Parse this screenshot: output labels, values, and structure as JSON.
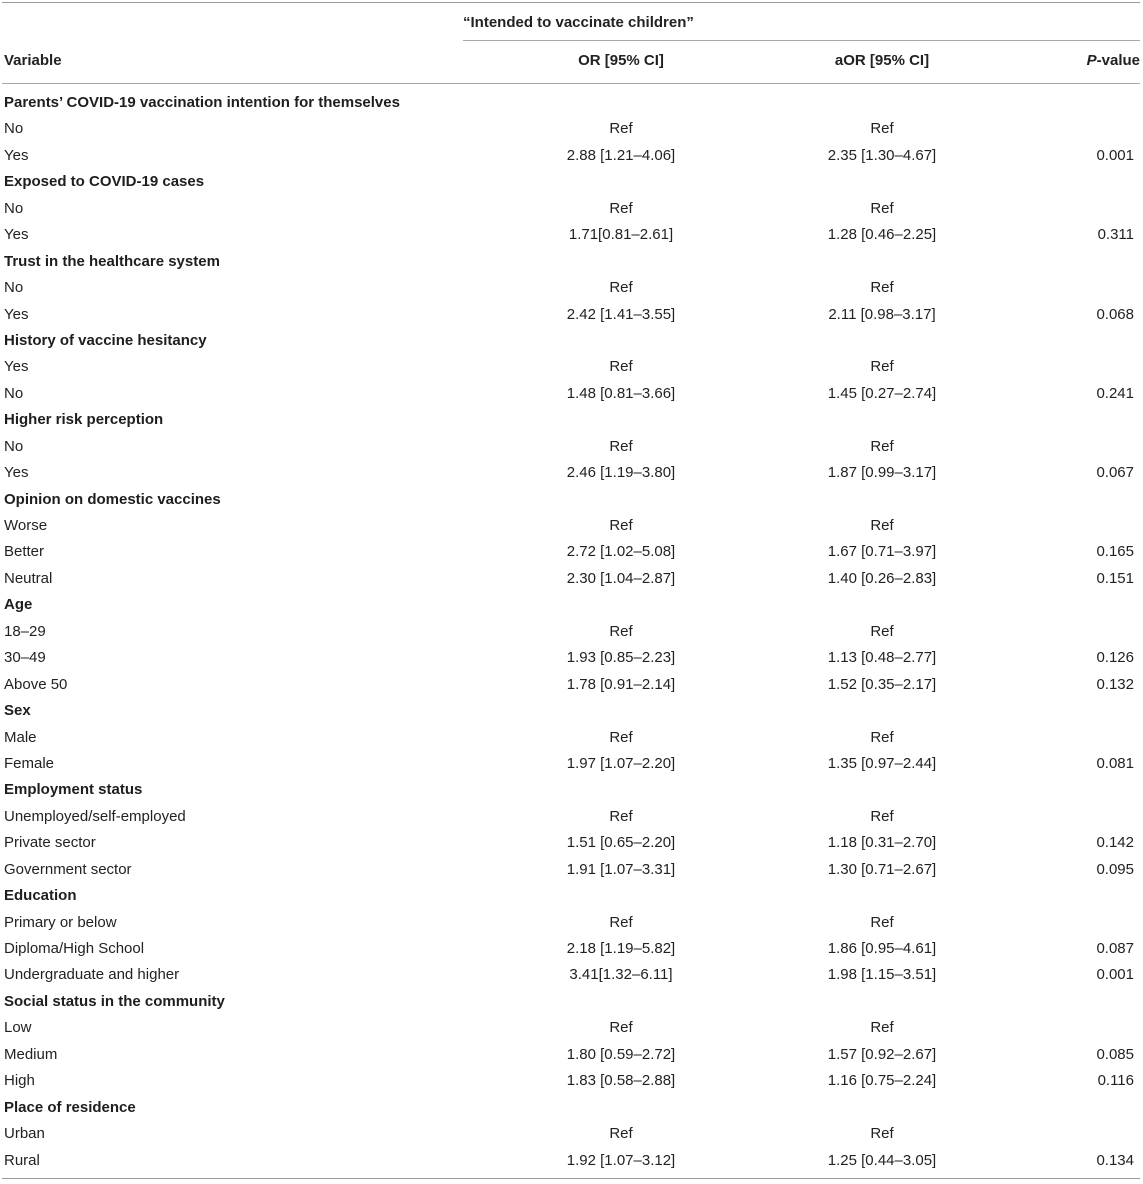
{
  "table": {
    "group_header": "“Intended to vaccinate children”",
    "columns": {
      "variable": "Variable",
      "or": "OR [95% CI]",
      "aor": "aOR [95% CI]",
      "p_italic": "P",
      "p_rest": "-value"
    },
    "rows": [
      {
        "type": "section",
        "label": "Parents’ COVID-19 vaccination intention for themselves"
      },
      {
        "type": "data",
        "label": "No",
        "or": "Ref",
        "aor": "Ref",
        "p": ""
      },
      {
        "type": "data",
        "label": "Yes",
        "or": "2.88 [1.21–4.06]",
        "aor": "2.35 [1.30–4.67]",
        "p": "0.001"
      },
      {
        "type": "section",
        "label": "Exposed to COVID-19 cases"
      },
      {
        "type": "data",
        "label": "No",
        "or": "Ref",
        "aor": "Ref",
        "p": ""
      },
      {
        "type": "data",
        "label": "Yes",
        "or": "1.71[0.81–2.61]",
        "aor": "1.28 [0.46–2.25]",
        "p": "0.311"
      },
      {
        "type": "section",
        "label": "Trust in the healthcare system"
      },
      {
        "type": "data",
        "label": "No",
        "or": "Ref",
        "aor": "Ref",
        "p": ""
      },
      {
        "type": "data",
        "label": "Yes",
        "or": "2.42 [1.41–3.55]",
        "aor": "2.11 [0.98–3.17]",
        "p": "0.068"
      },
      {
        "type": "section",
        "label": "History of vaccine hesitancy"
      },
      {
        "type": "data",
        "label": "Yes",
        "or": "Ref",
        "aor": "Ref",
        "p": ""
      },
      {
        "type": "data",
        "label": "No",
        "or": "1.48 [0.81–3.66]",
        "aor": "1.45 [0.27–2.74]",
        "p": "0.241"
      },
      {
        "type": "section",
        "label": "Higher risk perception"
      },
      {
        "type": "data",
        "label": "No",
        "or": "Ref",
        "aor": "Ref",
        "p": ""
      },
      {
        "type": "data",
        "label": "Yes",
        "or": "2.46 [1.19–3.80]",
        "aor": "1.87 [0.99–3.17]",
        "p": "0.067"
      },
      {
        "type": "section",
        "label": "Opinion on domestic vaccines"
      },
      {
        "type": "data",
        "label": "Worse",
        "or": "Ref",
        "aor": "Ref",
        "p": ""
      },
      {
        "type": "data",
        "label": "Better",
        "or": "2.72 [1.02–5.08]",
        "aor": "1.67 [0.71–3.97]",
        "p": "0.165"
      },
      {
        "type": "data",
        "label": "Neutral",
        "or": "2.30 [1.04–2.87]",
        "aor": "1.40 [0.26–2.83]",
        "p": "0.151"
      },
      {
        "type": "section",
        "label": "Age"
      },
      {
        "type": "data",
        "label": "18–29",
        "or": "Ref",
        "aor": "Ref",
        "p": ""
      },
      {
        "type": "data",
        "label": "30–49",
        "or": "1.93 [0.85–2.23]",
        "aor": "1.13 [0.48–2.77]",
        "p": "0.126"
      },
      {
        "type": "data",
        "label": "Above 50",
        "or": "1.78 [0.91–2.14]",
        "aor": "1.52 [0.35–2.17]",
        "p": "0.132"
      },
      {
        "type": "section",
        "label": "Sex"
      },
      {
        "type": "data",
        "label": "Male",
        "or": "Ref",
        "aor": "Ref",
        "p": ""
      },
      {
        "type": "data",
        "label": "Female",
        "or": "1.97 [1.07–2.20]",
        "aor": "1.35 [0.97–2.44]",
        "p": "0.081"
      },
      {
        "type": "section",
        "label": "Employment status"
      },
      {
        "type": "data",
        "label": "Unemployed/self-employed",
        "or": "Ref",
        "aor": "Ref",
        "p": ""
      },
      {
        "type": "data",
        "label": "Private sector",
        "or": "1.51 [0.65–2.20]",
        "aor": "1.18 [0.31–2.70]",
        "p": "0.142"
      },
      {
        "type": "data",
        "label": "Government sector",
        "or": "1.91 [1.07–3.31]",
        "aor": "1.30 [0.71–2.67]",
        "p": "0.095"
      },
      {
        "type": "section",
        "label": "Education"
      },
      {
        "type": "data",
        "label": "Primary or below",
        "or": "Ref",
        "aor": "Ref",
        "p": ""
      },
      {
        "type": "data",
        "label": "Diploma/High School",
        "or": "2.18 [1.19–5.82]",
        "aor": "1.86 [0.95–4.61]",
        "p": "0.087"
      },
      {
        "type": "data",
        "label": "Undergraduate and higher",
        "or": "3.41[1.32–6.11]",
        "aor": "1.98 [1.15–3.51]",
        "p": "0.001"
      },
      {
        "type": "section",
        "label": "Social status in the community"
      },
      {
        "type": "data",
        "label": "Low",
        "or": "Ref",
        "aor": "Ref",
        "p": ""
      },
      {
        "type": "data",
        "label": "Medium",
        "or": "1.80 [0.59–2.72]",
        "aor": "1.57 [0.92–2.67]",
        "p": "0.085"
      },
      {
        "type": "data",
        "label": "High",
        "or": "1.83 [0.58–2.88]",
        "aor": "1.16 [0.75–2.24]",
        "p": "0.116"
      },
      {
        "type": "section",
        "label": "Place of residence"
      },
      {
        "type": "data",
        "label": "Urban",
        "or": "Ref",
        "aor": "Ref",
        "p": ""
      },
      {
        "type": "data",
        "label": "Rural",
        "or": "1.92 [1.07–3.12]",
        "aor": "1.25 [0.44–3.05]",
        "p": "0.134"
      }
    ]
  }
}
